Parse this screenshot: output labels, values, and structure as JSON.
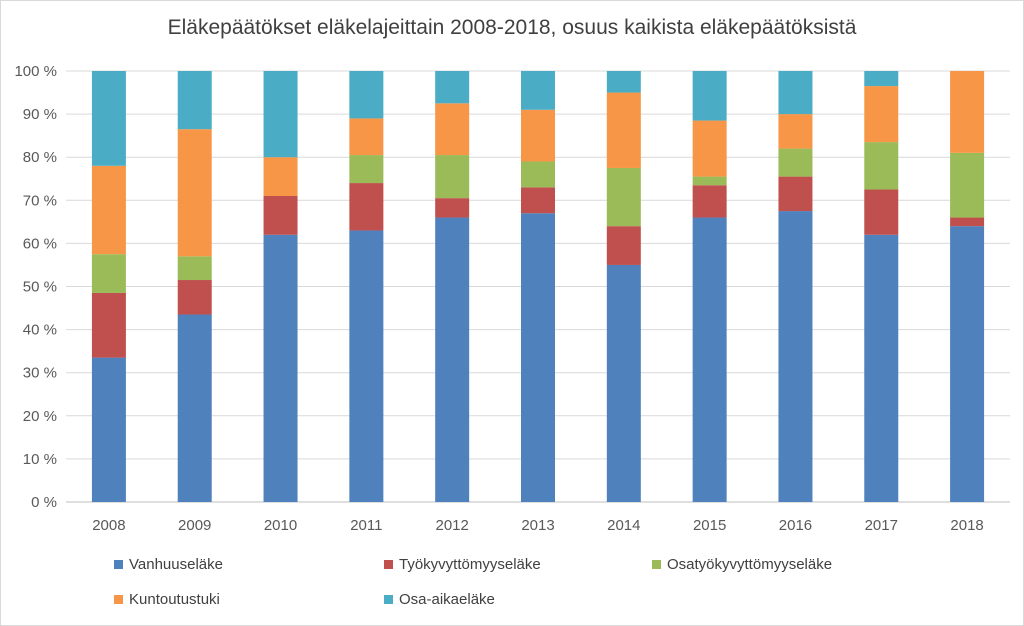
{
  "chart_data": {
    "type": "bar",
    "stacked": true,
    "title": "Eläkepäätökset eläkelajeittain 2008-2018, osuus kaikista eläkepäätöksistä",
    "categories": [
      "2008",
      "2009",
      "2010",
      "2011",
      "2012",
      "2013",
      "2014",
      "2015",
      "2016",
      "2017",
      "2018"
    ],
    "y_ticks": [
      "0 %",
      "10 %",
      "20 %",
      "30 %",
      "40 %",
      "50 %",
      "60 %",
      "70 %",
      "80 %",
      "90 %",
      "100 %"
    ],
    "ylim": [
      0,
      100
    ],
    "grid": true,
    "legend_position": "bottom",
    "series": [
      {
        "name": "Vanhuuseläke",
        "color": "#4f81bd",
        "values": [
          33.5,
          43.5,
          62,
          63,
          66,
          67,
          55,
          66,
          67.5,
          62,
          64
        ]
      },
      {
        "name": "Työkyvyttömyyseläke",
        "color": "#c0504d",
        "values": [
          15,
          8,
          9,
          11,
          4.5,
          6,
          9,
          7.5,
          8,
          10.5,
          2
        ]
      },
      {
        "name": "Osatyökyvyttömyyseläke",
        "color": "#9bbb59",
        "values": [
          9,
          5.5,
          0,
          6.5,
          10,
          6,
          13.5,
          2,
          6.5,
          11,
          15
        ]
      },
      {
        "name": "Kuntoutustuki",
        "color": "#f79646",
        "values": [
          20.5,
          29.5,
          9,
          8.5,
          12,
          12,
          17.5,
          13,
          8,
          13,
          19
        ]
      },
      {
        "name": "Osa-aikaeläke",
        "color": "#4bacc6",
        "values": [
          22,
          13.5,
          20,
          11,
          7.5,
          9,
          5,
          11.5,
          10,
          3.5,
          0
        ]
      }
    ]
  }
}
